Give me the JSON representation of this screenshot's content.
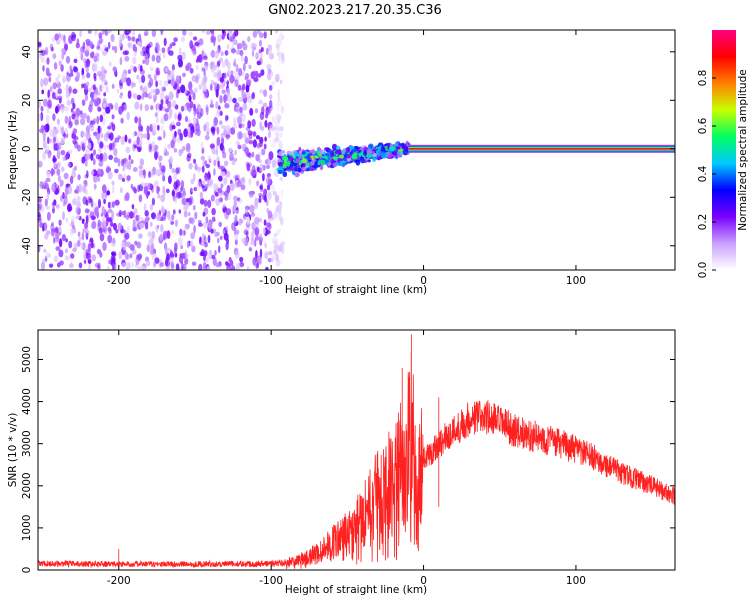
{
  "chart_data": [
    {
      "type": "heatmap",
      "title": "GN02.2023.217.20.35.C36",
      "xlabel": "Height of straight line (km)",
      "ylabel": "Frequency (Hz)",
      "xlim": [
        -253,
        165
      ],
      "ylim": [
        -50,
        49
      ],
      "xticks": [
        -200,
        -100,
        0,
        100
      ],
      "yticks": [
        -40,
        -20,
        0,
        20,
        40
      ],
      "colorbar": {
        "label": "Normalized spectral amplitude",
        "range": [
          0.0,
          1.0
        ],
        "ticks": [
          "0.0",
          "0.2",
          "0.4",
          "0.6",
          "0.8"
        ],
        "colors": [
          "#ffffff",
          "#c9a0ff",
          "#7a00ff",
          "#0000ff",
          "#00c8ff",
          "#00ff60",
          "#c8ff00",
          "#ff8000",
          "#ff0000",
          "#ff0080"
        ]
      },
      "regions": [
        {
          "x_range": [
            -253,
            -100
          ],
          "y_range": [
            -50,
            49
          ],
          "description": "diffuse noise",
          "amplitude": 0.15
        },
        {
          "x_range": [
            -95,
            -10
          ],
          "y_center": [
            -6,
            0
          ],
          "spread_hz": 6,
          "amplitude": 0.45
        },
        {
          "x_range": [
            -10,
            165
          ],
          "y_center": 0,
          "spread_hz": 1.5,
          "amplitude": 0.9
        }
      ],
      "grid": false
    },
    {
      "type": "line",
      "xlabel": "Height of straight line (km)",
      "ylabel": "SNR (10 * v/v)",
      "xlim": [
        -253,
        165
      ],
      "ylim": [
        0,
        5700
      ],
      "xticks": [
        -200,
        -100,
        0,
        100
      ],
      "yticks": [
        0,
        1000,
        2000,
        3000,
        4000,
        5000
      ],
      "series": [
        {
          "color": "#ff2020",
          "x": [
            -253,
            -200,
            -150,
            -100,
            -85,
            -70,
            -60,
            -50,
            -40,
            -30,
            -20,
            -15,
            -12,
            -10,
            -8,
            -5,
            0,
            10,
            20,
            30,
            40,
            50,
            60,
            70,
            80,
            90,
            100,
            110,
            120,
            130,
            140,
            150,
            165
          ],
          "y": [
            150,
            140,
            140,
            150,
            200,
            400,
            650,
            900,
            1300,
            1800,
            2200,
            2500,
            2000,
            3000,
            3500,
            2200,
            2600,
            3000,
            3300,
            3600,
            3650,
            3500,
            3300,
            3200,
            3100,
            3000,
            2850,
            2700,
            2500,
            2300,
            2150,
            2000,
            1750
          ]
        }
      ],
      "spikes": [
        {
          "x": -8,
          "y": 5600
        },
        {
          "x": -14,
          "y": 4800
        },
        {
          "x": 10,
          "y": 4100
        },
        {
          "x": -200,
          "y": 500
        }
      ],
      "grid": false
    }
  ]
}
